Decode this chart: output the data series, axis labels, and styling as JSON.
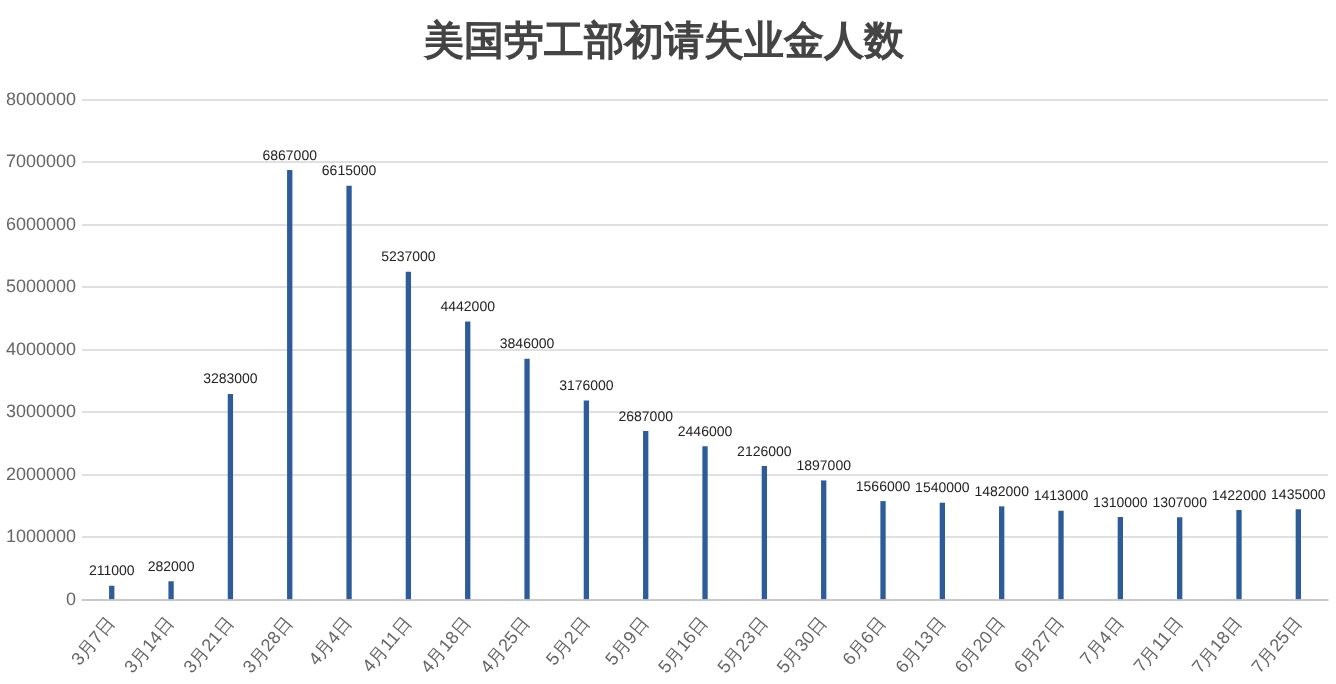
{
  "chart_data": {
    "type": "bar",
    "title": "美国劳工部初请失业金人数",
    "categories": [
      "3月7日",
      "3月14日",
      "3月21日",
      "3月28日",
      "4月4日",
      "4月11日",
      "4月18日",
      "4月25日",
      "5月2日",
      "5月9日",
      "5月16日",
      "5月23日",
      "5月30日",
      "6月6日",
      "6月13日",
      "6月20日",
      "6月27日",
      "7月4日",
      "7月11日",
      "7月18日",
      "7月25日"
    ],
    "values": [
      211000,
      282000,
      3283000,
      6867000,
      6615000,
      5237000,
      4442000,
      3846000,
      3176000,
      2687000,
      2446000,
      2126000,
      1897000,
      1566000,
      1540000,
      1482000,
      1413000,
      1310000,
      1307000,
      1422000,
      1435000
    ],
    "color": "#2e5c9a",
    "ylim": [
      0,
      8000000
    ],
    "yticks": [
      0,
      1000000,
      2000000,
      3000000,
      4000000,
      5000000,
      6000000,
      7000000,
      8000000
    ],
    "grid": "y",
    "data_labels": true
  }
}
